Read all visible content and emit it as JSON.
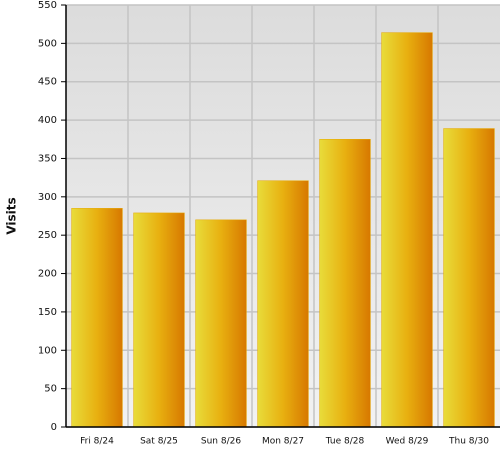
{
  "chart_data": {
    "type": "bar",
    "y_label": "Visits",
    "categories": [
      "Fri 8/24",
      "Sat 8/25",
      "Sun 8/26",
      "Mon 8/27",
      "Tue 8/28",
      "Wed 8/29",
      "Thu 8/30"
    ],
    "values": [
      285,
      279,
      270,
      321,
      375,
      514,
      389
    ],
    "color": "#e6a800",
    "ylim": [
      0,
      550
    ],
    "yticks": [
      0,
      50,
      100,
      150,
      200,
      250,
      300,
      350,
      400,
      450,
      500,
      550
    ],
    "grid": true
  }
}
